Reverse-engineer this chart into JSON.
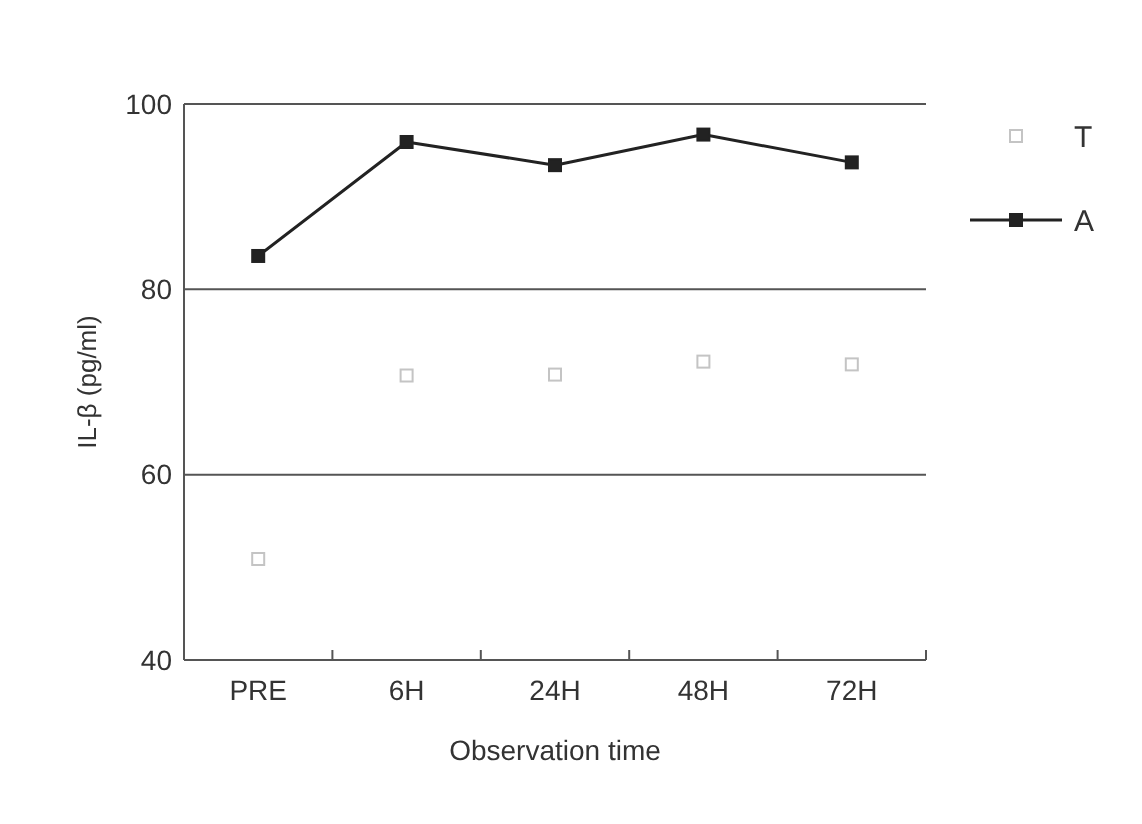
{
  "chart_data": {
    "type": "line",
    "xlabel": "Observation time",
    "ylabel": "IL-β (pg/ml)",
    "categories": [
      "PRE",
      "6H",
      "24H",
      "48H",
      "72H"
    ],
    "series": [
      {
        "name": "T",
        "type": "scatter",
        "color": "#c4c4c4",
        "values": [
          50.9,
          70.7,
          70.8,
          72.2,
          71.9
        ]
      },
      {
        "name": "A",
        "color": "#222222",
        "values": [
          83.6,
          95.9,
          93.4,
          96.7,
          93.7
        ]
      }
    ],
    "ylim": [
      40,
      100
    ],
    "yticks": [
      40,
      60,
      80,
      100
    ],
    "grid": "y",
    "legend": "top right",
    "marker": "square",
    "line_style": "solid"
  }
}
